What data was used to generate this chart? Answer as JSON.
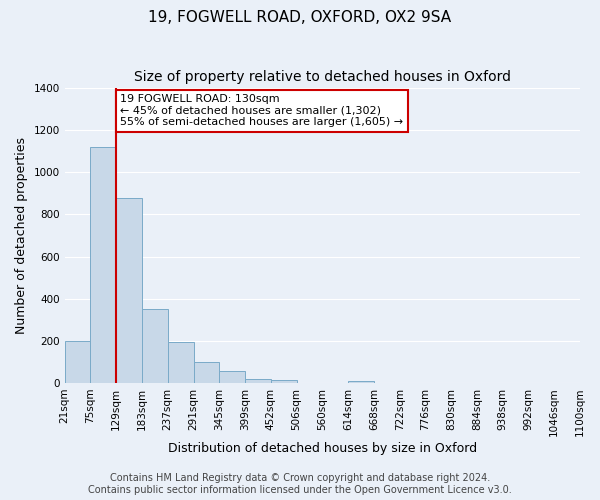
{
  "title": "19, FOGWELL ROAD, OXFORD, OX2 9SA",
  "subtitle": "Size of property relative to detached houses in Oxford",
  "xlabel": "Distribution of detached houses by size in Oxford",
  "ylabel": "Number of detached properties",
  "bin_labels": [
    "21sqm",
    "75sqm",
    "129sqm",
    "183sqm",
    "237sqm",
    "291sqm",
    "345sqm",
    "399sqm",
    "452sqm",
    "506sqm",
    "560sqm",
    "614sqm",
    "668sqm",
    "722sqm",
    "776sqm",
    "830sqm",
    "884sqm",
    "938sqm",
    "992sqm",
    "1046sqm",
    "1100sqm"
  ],
  "bar_heights": [
    200,
    1120,
    880,
    350,
    195,
    100,
    55,
    20,
    15,
    0,
    0,
    10,
    0,
    0,
    0,
    0,
    0,
    0,
    0,
    0
  ],
  "bar_color": "#c8d8e8",
  "bar_edge_color": "#7aaac8",
  "red_line_bin_index": 2,
  "annotation_title": "19 FOGWELL ROAD: 130sqm",
  "annotation_line1": "← 45% of detached houses are smaller (1,302)",
  "annotation_line2": "55% of semi-detached houses are larger (1,605) →",
  "annotation_box_color": "#ffffff",
  "annotation_box_edge_color": "#cc0000",
  "ylim": [
    0,
    1400
  ],
  "yticks": [
    0,
    200,
    400,
    600,
    800,
    1000,
    1200,
    1400
  ],
  "footer_line1": "Contains HM Land Registry data © Crown copyright and database right 2024.",
  "footer_line2": "Contains public sector information licensed under the Open Government Licence v3.0.",
  "bg_color": "#eaf0f8",
  "plot_bg_color": "#eaf0f8",
  "grid_color": "#ffffff",
  "title_fontsize": 11,
  "subtitle_fontsize": 10,
  "axis_label_fontsize": 9,
  "tick_fontsize": 7.5,
  "footer_fontsize": 7
}
